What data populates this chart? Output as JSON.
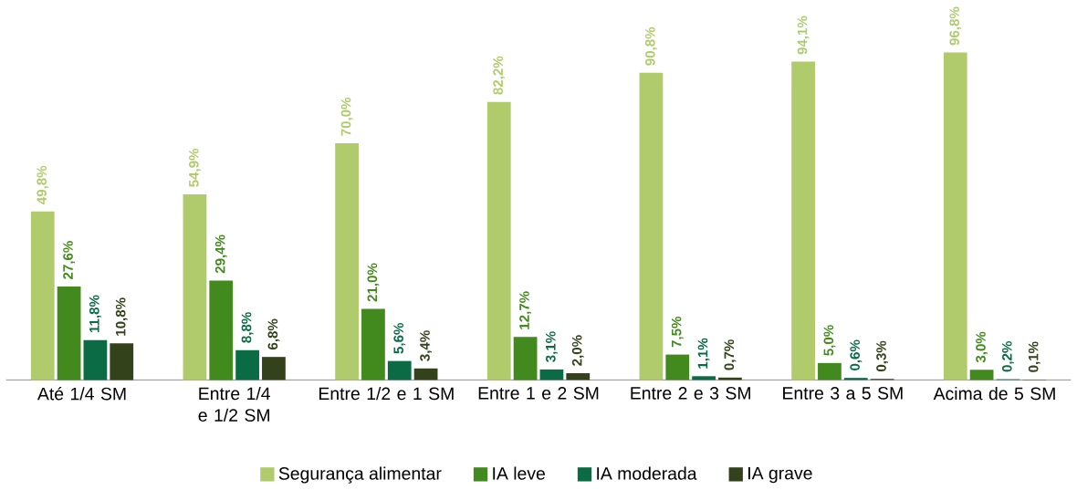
{
  "chart_data": {
    "type": "bar",
    "categories": [
      "Até 1/4 SM",
      "Entre 1/4 e 1/2 SM",
      "Entre 1/2 e 1 SM",
      "Entre 1 e 2 SM",
      "Entre 2 e 3 SM",
      "Entre 3 a 5 SM",
      "Acima de 5 SM"
    ],
    "series": [
      {
        "name": "Segurança alimentar",
        "color": "#afcb6b",
        "values": [
          49.8,
          54.9,
          70.0,
          82.2,
          90.8,
          94.1,
          96.8
        ],
        "value_labels": [
          "49,8%",
          "54,9%",
          "70,0%",
          "82,2%",
          "90,8%",
          "94,1%",
          "96,8%"
        ]
      },
      {
        "name": "IA leve",
        "color": "#428a1d",
        "values": [
          27.6,
          29.4,
          21.0,
          12.7,
          7.5,
          5.0,
          3.0
        ],
        "value_labels": [
          "27,6%",
          "29,4%",
          "21,0%",
          "12,7%",
          "7,5%",
          "5,0%",
          "3,0%"
        ]
      },
      {
        "name": "IA moderada",
        "color": "#0a6b45",
        "values": [
          11.8,
          8.8,
          5.6,
          3.1,
          1.1,
          0.6,
          0.2
        ],
        "value_labels": [
          "11,8%",
          "8,8%",
          "5,6%",
          "3,1%",
          "1,1%",
          "0,6%",
          "0,2%"
        ]
      },
      {
        "name": "IA grave",
        "color": "#33421a",
        "values": [
          10.8,
          6.8,
          3.4,
          2.0,
          0.7,
          0.3,
          0.1
        ],
        "value_labels": [
          "10,8%",
          "6,8%",
          "3,4%",
          "2,0%",
          "0,7%",
          "0,3%",
          "0,1%"
        ]
      }
    ],
    "legend": "bottom"
  }
}
